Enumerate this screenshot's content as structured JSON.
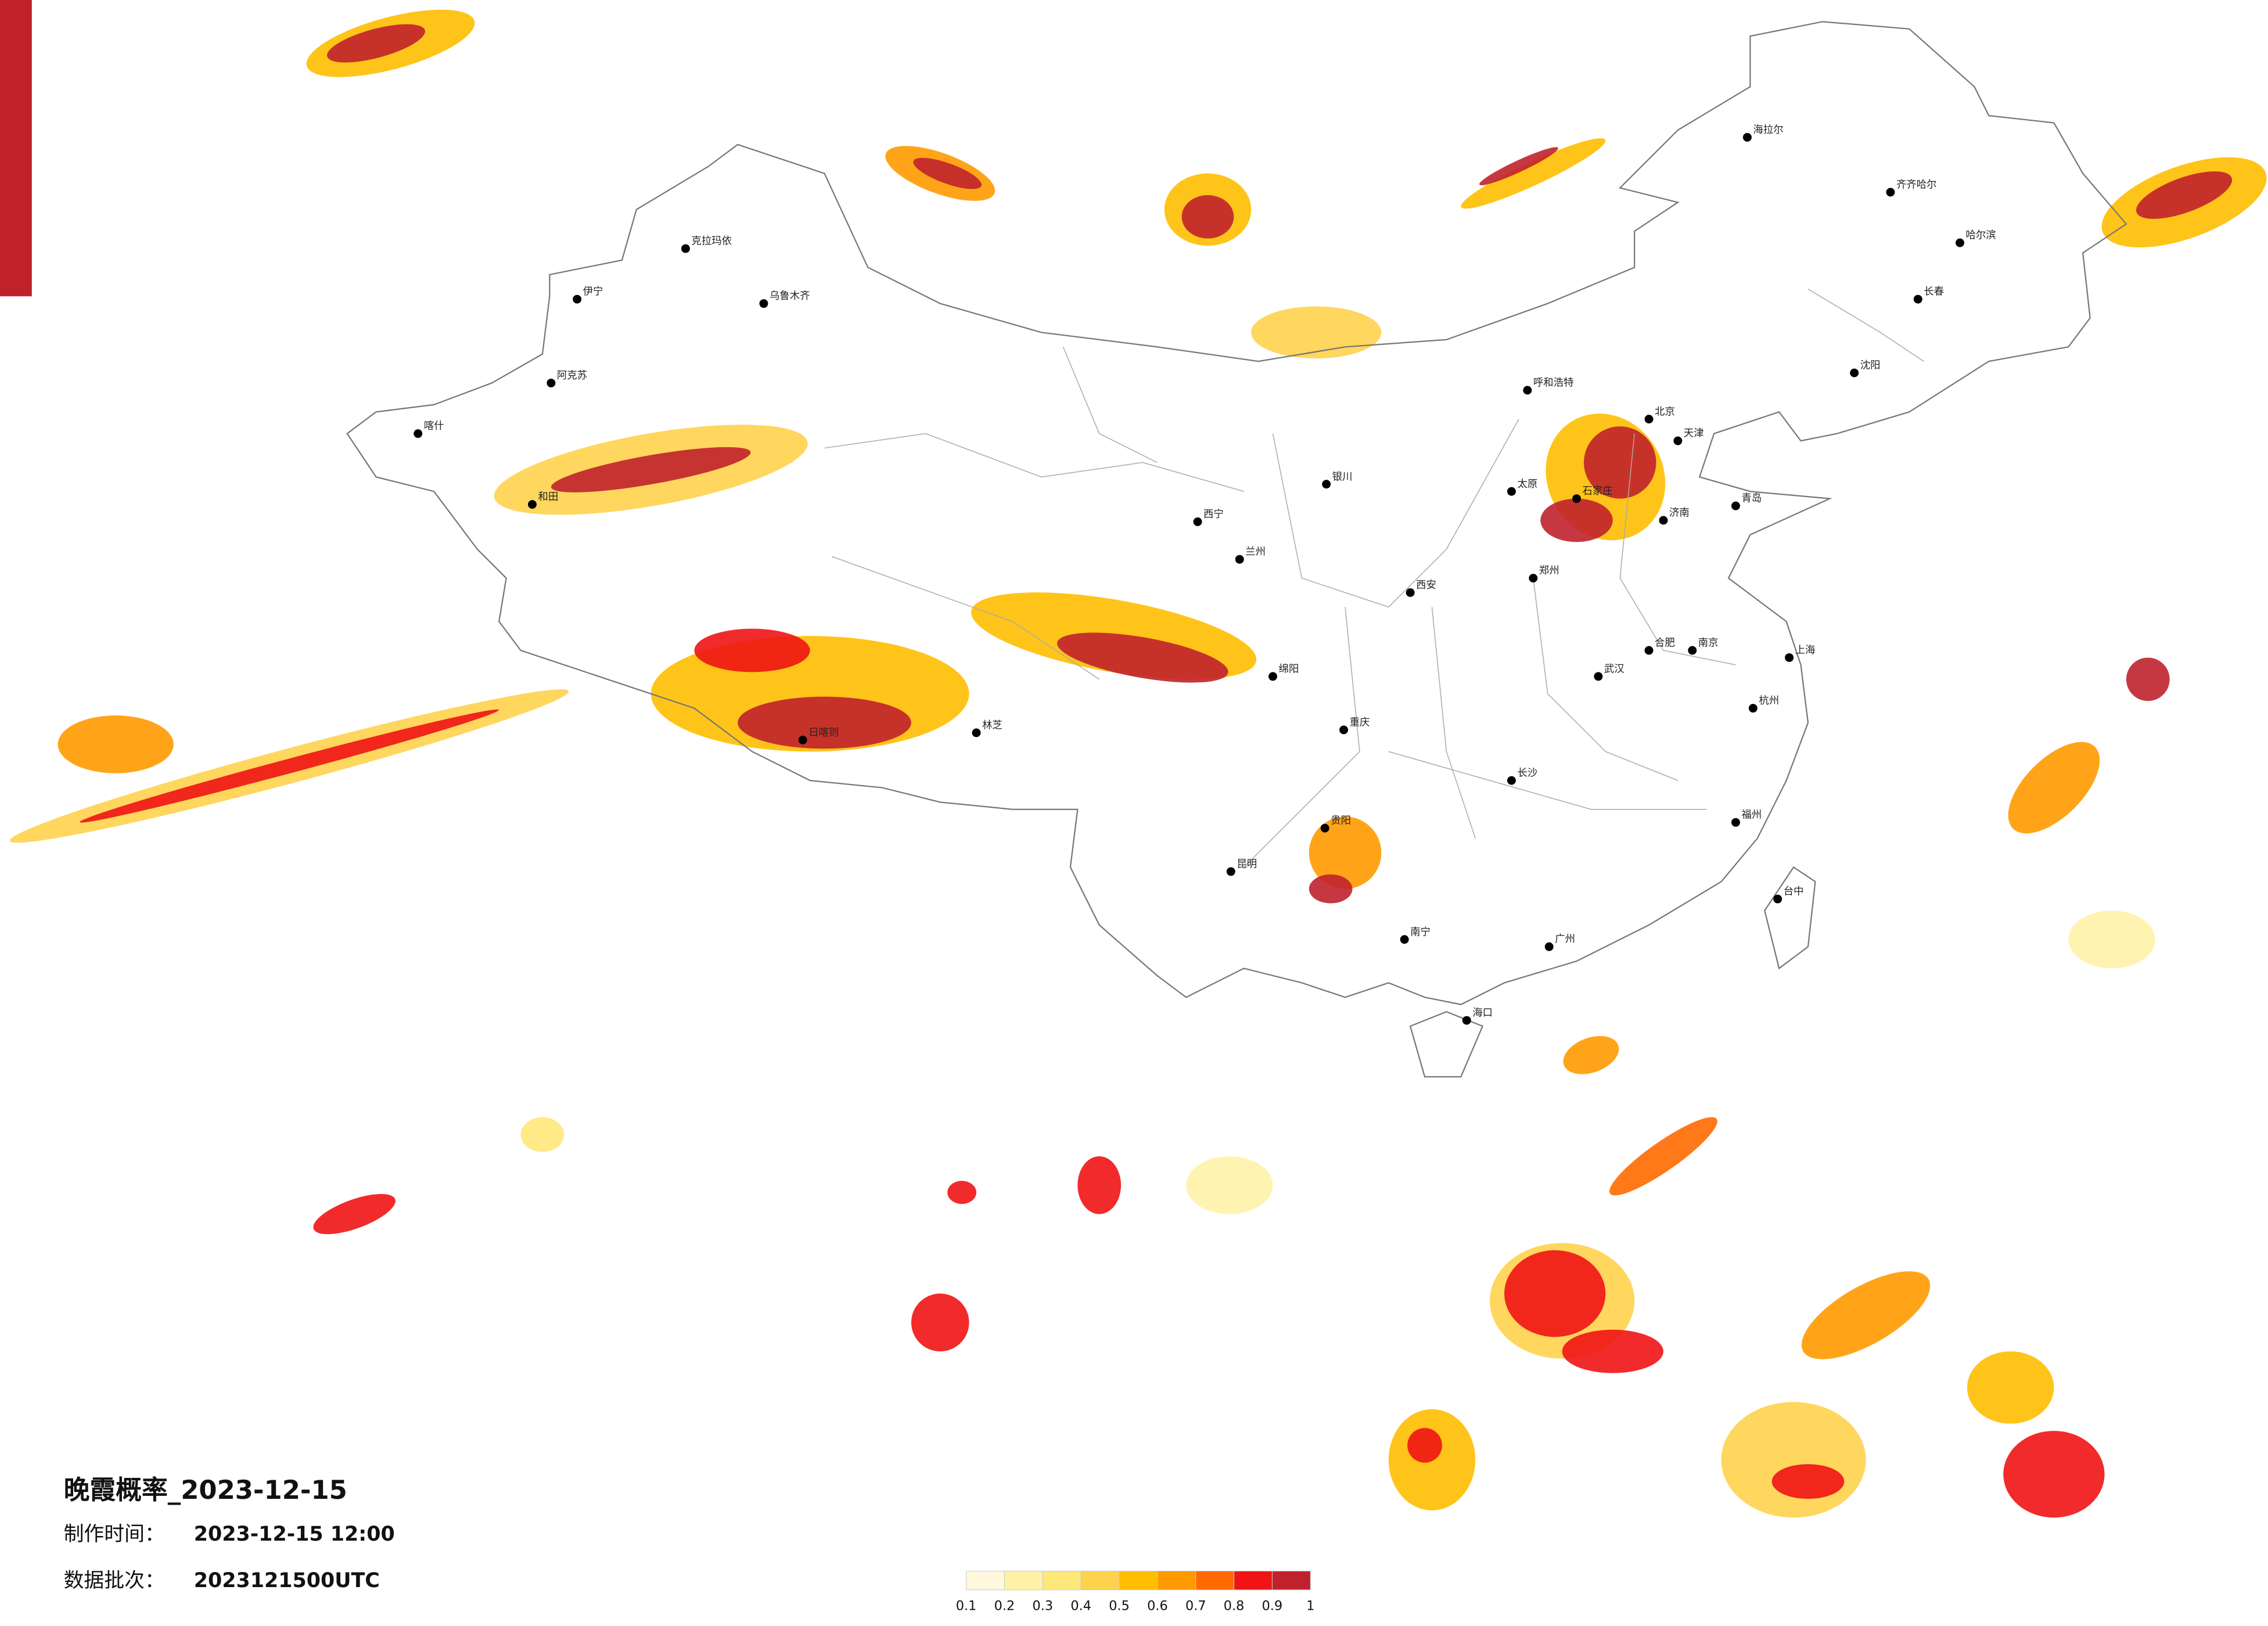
{
  "title": "晚霞概率_2023-12-15",
  "production_label": "制作时间：",
  "production_time": "2023-12-15 12:00",
  "batch_label": "数据批次：",
  "batch": "2023121500UTC",
  "colorbar": {
    "ticks": [
      0.1,
      0.2,
      0.3,
      0.4,
      0.5,
      0.6,
      0.7,
      0.8,
      0.9,
      1
    ],
    "colors": [
      "#fff8dc",
      "#fff2a8",
      "#ffe87a",
      "#ffd24d",
      "#ffbe00",
      "#ff9a00",
      "#ff6a00",
      "#f01414",
      "#c0222c"
    ]
  },
  "cities": [
    "克拉玛依",
    "乌鲁木齐",
    "伊宁",
    "阿克苏",
    "和田",
    "喀什",
    "日喀则",
    "林芝",
    "西宁",
    "兰州",
    "银川",
    "绵阳",
    "重庆",
    "昆明",
    "贵阳",
    "南宁",
    "广州",
    "长沙",
    "武汉",
    "南京",
    "上海",
    "杭州",
    "福州",
    "台中",
    "哈尔滨",
    "长春",
    "沈阳",
    "呼和浩特",
    "海口",
    "齐齐哈尔",
    "海拉尔",
    "北京",
    "天津",
    "石家庄",
    "太原",
    "郑州",
    "济南",
    "青岛",
    "西安",
    "合肥"
  ]
}
